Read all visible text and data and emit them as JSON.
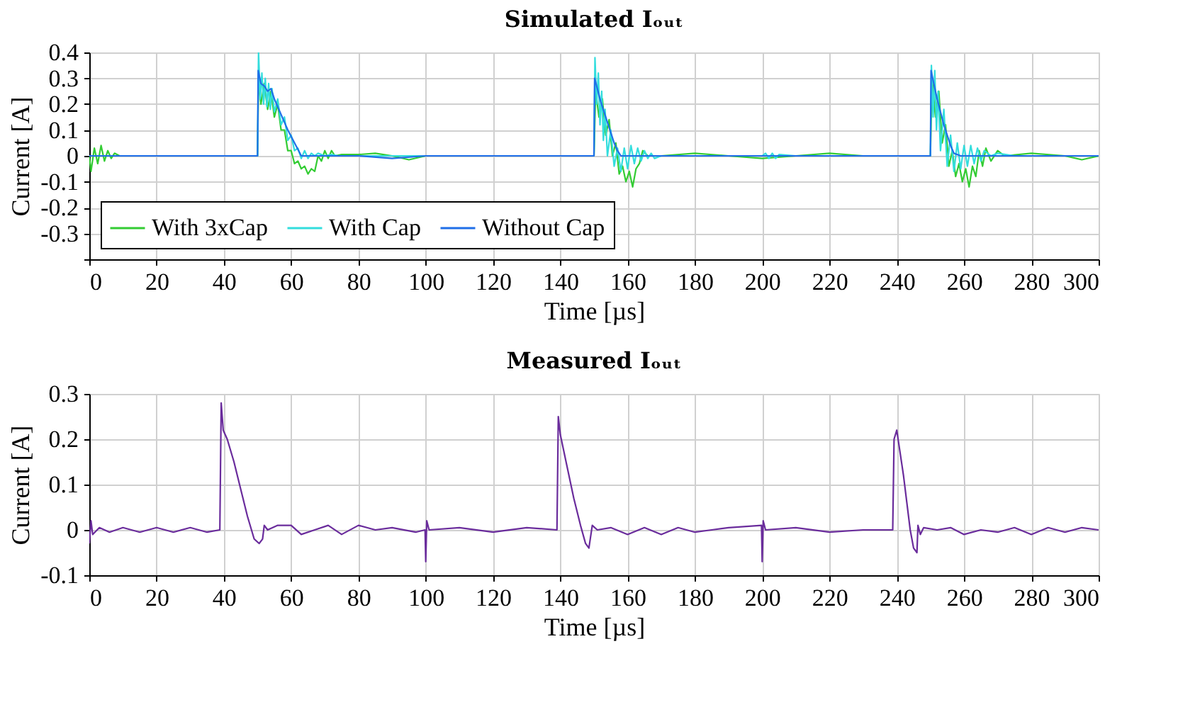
{
  "chart_data": [
    {
      "type": "line",
      "title": "Simulated Iₒᵤₜ",
      "xlabel": "Time [µs]",
      "ylabel": "Current [A]",
      "xlim": [
        0,
        300
      ],
      "xticks": [
        0,
        20,
        40,
        60,
        80,
        100,
        120,
        140,
        160,
        180,
        200,
        220,
        240,
        260,
        280,
        300
      ],
      "ylim": [
        -0.4,
        0.4
      ],
      "yticks": [
        {
          "value": -0.4,
          "label": null
        },
        -0.3,
        -0.2,
        -0.1,
        0,
        0.1,
        0.2,
        0.3,
        0.4
      ],
      "grid": true,
      "legend": "bottom left",
      "line_style": "solid",
      "marker": "none",
      "series": [
        {
          "name": "With 3xCap",
          "color": "#33cc33",
          "x": [
            0,
            0.5,
            1.5,
            2.5,
            3.5,
            4.5,
            5.5,
            6.5,
            7.5,
            9,
            50,
            50.3,
            51,
            52,
            53,
            54,
            55,
            56,
            57,
            58,
            59,
            60,
            61,
            62,
            63,
            64,
            65,
            66,
            67,
            68,
            69,
            70,
            71,
            72,
            73,
            75,
            80,
            85,
            90,
            95,
            100,
            150,
            150.5,
            151.5,
            152.5,
            153.5,
            154.5,
            155.5,
            156.5,
            157.5,
            158.5,
            159.5,
            160.5,
            161.5,
            162.5,
            163.5,
            164.5,
            166,
            170,
            180,
            190,
            200,
            210,
            220,
            230,
            250,
            250.5,
            251.5,
            252.5,
            253.5,
            254.5,
            255.5,
            256.5,
            257.5,
            258.5,
            259.5,
            260.5,
            261.5,
            262.5,
            263.5,
            264.5,
            265.5,
            266.5,
            268,
            270,
            272,
            280,
            290,
            295,
            300
          ],
          "values": [
            0,
            -0.06,
            0.03,
            -0.03,
            0.04,
            -0.02,
            0.02,
            -0.01,
            0.01,
            0,
            0,
            0.3,
            0.2,
            0.28,
            0.18,
            0.25,
            0.15,
            0.2,
            0.1,
            0.1,
            0.02,
            0.02,
            -0.03,
            -0.02,
            -0.05,
            -0.04,
            -0.07,
            -0.05,
            -0.06,
            0,
            -0.02,
            0.02,
            -0.01,
            0.02,
            0,
            0.005,
            0.005,
            0.01,
            0,
            -0.015,
            0,
            0,
            0.25,
            0.15,
            0.22,
            0.08,
            0.14,
            0,
            0.05,
            -0.07,
            -0.04,
            -0.1,
            -0.06,
            -0.12,
            -0.05,
            -0.03,
            0.02,
            0,
            0,
            0.01,
            0,
            -0.01,
            0,
            0.01,
            0,
            0,
            0.3,
            0.15,
            0.25,
            0.05,
            0.12,
            -0.04,
            0.02,
            -0.08,
            -0.03,
            -0.1,
            -0.05,
            -0.12,
            -0.04,
            -0.08,
            0.02,
            -0.04,
            0.03,
            -0.02,
            0.02,
            0,
            0.01,
            0,
            -0.015,
            0
          ]
        },
        {
          "name": "With Cap",
          "color": "#33dddd",
          "x": [
            0,
            50,
            50.3,
            50.8,
            51.3,
            51.8,
            52.3,
            52.8,
            53.3,
            53.8,
            54.3,
            55,
            56,
            57,
            58,
            59,
            60,
            61,
            62,
            63,
            64,
            65,
            66,
            67,
            68,
            70,
            72,
            74,
            80,
            100,
            150,
            150.3,
            150.8,
            151.3,
            151.8,
            152.3,
            152.8,
            153.3,
            154,
            155,
            156,
            157,
            158,
            159,
            160,
            161,
            162,
            163,
            164,
            165,
            166,
            167,
            168,
            170,
            173,
            200,
            201,
            202,
            203,
            204,
            205,
            210,
            250,
            250.3,
            250.8,
            251.3,
            251.8,
            252.3,
            253,
            254,
            255,
            256,
            257,
            258,
            259,
            260,
            261,
            262,
            263,
            264,
            265,
            266,
            268,
            270,
            275,
            300
          ],
          "values": [
            0,
            0,
            0.4,
            0.22,
            0.32,
            0.2,
            0.3,
            0.19,
            0.28,
            0.18,
            0.26,
            0.17,
            0.22,
            0.12,
            0.15,
            0.06,
            0.08,
            0.02,
            0.03,
            -0.01,
            0.02,
            -0.01,
            0.01,
            0,
            0.01,
            0,
            0.005,
            0,
            0,
            0,
            0,
            0.38,
            0.2,
            0.32,
            0.12,
            0.25,
            0.06,
            0.18,
            0,
            0.1,
            -0.04,
            0.03,
            -0.06,
            0.03,
            -0.05,
            0.04,
            -0.03,
            0.03,
            -0.02,
            0.02,
            -0.01,
            0.01,
            -0.01,
            0,
            0,
            0,
            0.01,
            -0.01,
            0.01,
            -0.01,
            0.005,
            0,
            0,
            0.35,
            0.15,
            0.33,
            0.1,
            0.25,
            0.02,
            0.18,
            -0.04,
            0.08,
            -0.06,
            0.05,
            -0.05,
            0.04,
            -0.04,
            0.04,
            -0.03,
            0.03,
            -0.02,
            0.02,
            0,
            0.01,
            0,
            0
          ]
        },
        {
          "name": "Without Cap",
          "color": "#1f6fe8",
          "x": [
            0,
            50,
            50.2,
            51,
            52,
            53,
            54,
            55,
            57,
            59,
            61,
            63,
            65,
            80,
            90,
            100,
            110,
            150,
            150.2,
            151,
            152,
            153,
            154,
            155,
            156,
            157,
            158,
            160,
            200,
            250,
            250.2,
            251,
            252,
            253,
            254,
            255,
            256,
            257,
            259,
            300
          ],
          "values": [
            0,
            0,
            0.33,
            0.28,
            0.27,
            0.25,
            0.26,
            0.22,
            0.16,
            0.1,
            0.05,
            0,
            0,
            0,
            -0.01,
            0,
            0,
            0,
            0.3,
            0.26,
            0.21,
            0.17,
            0.13,
            0.09,
            0.05,
            0.02,
            0,
            0,
            0,
            0,
            0.33,
            0.28,
            0.22,
            0.17,
            0.12,
            0.08,
            0.04,
            0.01,
            0,
            0
          ]
        }
      ]
    },
    {
      "type": "line",
      "title": "Measured Iₒᵤₜ",
      "xlabel": "Time [µs]",
      "ylabel": "Current [A]",
      "xlim": [
        0,
        300
      ],
      "xticks": [
        0,
        20,
        40,
        60,
        80,
        100,
        120,
        140,
        160,
        180,
        200,
        220,
        240,
        260,
        280,
        300
      ],
      "ylim": [
        -0.1,
        0.3
      ],
      "yticks": [
        -0.1,
        0,
        0.1,
        0.2,
        0.3
      ],
      "grid": true,
      "line_style": "solid",
      "marker": "none",
      "series": [
        {
          "color": "#6a2c9c",
          "x": [
            0,
            0.5,
            1,
            3,
            6,
            10,
            15,
            20,
            25,
            30,
            35,
            38.8,
            39.2,
            39.8,
            41,
            43,
            45,
            47,
            49,
            50.5,
            51.5,
            52,
            53,
            56,
            60,
            63,
            67,
            71,
            75,
            80,
            85,
            90,
            97,
            99.8,
            100,
            100.3,
            101,
            110,
            120,
            130,
            139,
            139.4,
            140,
            142,
            144,
            146,
            147.5,
            148.5,
            149.5,
            151,
            155,
            160,
            165,
            170,
            175,
            180,
            185,
            190,
            199.8,
            200,
            200.3,
            201,
            210,
            220,
            230,
            238.8,
            239.2,
            240,
            241,
            242,
            243,
            244,
            245,
            246,
            246.3,
            247,
            248,
            252,
            256,
            260,
            265,
            270,
            275,
            280,
            285,
            290,
            295,
            300
          ],
          "values": [
            -0.03,
            0.02,
            -0.01,
            0.005,
            -0.005,
            0.005,
            -0.005,
            0.005,
            -0.005,
            0.005,
            -0.005,
            0,
            0.28,
            0.22,
            0.2,
            0.15,
            0.09,
            0.03,
            -0.02,
            -0.03,
            -0.02,
            0.01,
            0,
            0.01,
            0.01,
            -0.01,
            0,
            0.01,
            -0.01,
            0.01,
            0,
            0.005,
            -0.005,
            0,
            -0.07,
            0.02,
            0,
            0.005,
            -0.005,
            0.005,
            0,
            0.25,
            0.21,
            0.14,
            0.07,
            0.01,
            -0.03,
            -0.04,
            0.01,
            0,
            0.005,
            -0.01,
            0.005,
            -0.01,
            0.005,
            -0.005,
            0,
            0.005,
            0.01,
            -0.07,
            0.02,
            0,
            0.005,
            -0.005,
            0,
            0,
            0.2,
            0.22,
            0.17,
            0.12,
            0.06,
            0,
            -0.04,
            -0.05,
            0.01,
            -0.01,
            0.005,
            0,
            0.005,
            -0.01,
            0,
            -0.005,
            0.005,
            -0.01,
            0.005,
            -0.005,
            0.005,
            0
          ]
        }
      ]
    }
  ]
}
